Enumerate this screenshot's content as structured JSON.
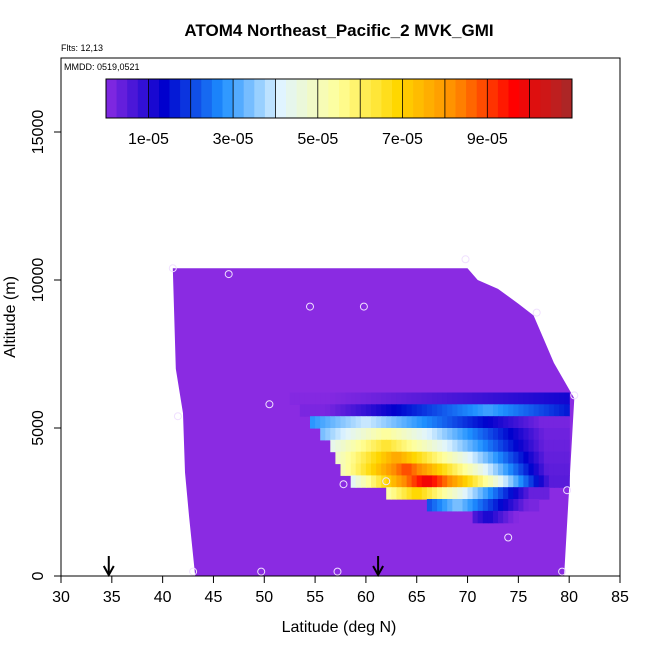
{
  "chart_data": {
    "type": "heatmap",
    "title": "ATOM4 Northeast_Pacific_2 MVK_GMI",
    "flights_note": "Flts: 12,13",
    "date_note": "MMDD: 0519,0521",
    "xlabel": "Latitude (deg N)",
    "ylabel": "Altitude (m)",
    "xlim": [
      30,
      85
    ],
    "ylim": [
      0,
      17500
    ],
    "x_ticks": [
      "30",
      "35",
      "40",
      "45",
      "50",
      "55",
      "60",
      "65",
      "70",
      "75",
      "80",
      "85"
    ],
    "y_ticks": [
      "0",
      "5000",
      "10000",
      "15000"
    ],
    "colorbar": {
      "range": [
        0,
        0.00011
      ],
      "tick_labels": [
        "1e-05",
        "3e-05",
        "5e-05",
        "7e-05",
        "9e-05"
      ],
      "tick_values": [
        1e-05,
        3e-05,
        5e-05,
        7e-05,
        9e-05
      ],
      "colors": [
        "#8a2be2",
        "#0000cd",
        "#1e90ff",
        "#e0f4ff",
        "#ffff99",
        "#ffd700",
        "#ff8c00",
        "#ff0000",
        "#a52a2a"
      ]
    },
    "background_value": 0.0,
    "domain_outline": [
      [
        41,
        10400
      ],
      [
        70,
        10400
      ],
      [
        71,
        10000
      ],
      [
        73,
        9700
      ],
      [
        75,
        9200
      ],
      [
        76.5,
        8800
      ],
      [
        77.5,
        8000
      ],
      [
        78.5,
        7200
      ],
      [
        79.5,
        6600
      ],
      [
        80.5,
        6000
      ],
      [
        80,
        3000
      ],
      [
        79.5,
        0
      ],
      [
        43.2,
        0
      ],
      [
        42.6,
        2000
      ],
      [
        42.2,
        3500
      ],
      [
        42,
        5500
      ],
      [
        41.3,
        7000
      ],
      [
        41,
        10400
      ]
    ],
    "plume_rows": [
      {
        "alt": 5800,
        "lat_start": 52.5,
        "lat_end": 80,
        "peak_lat": 80,
        "peak": 1.2e-05
      },
      {
        "alt": 5400,
        "lat_start": 53.5,
        "lat_end": 80,
        "peak_lat": 72,
        "peak": 3e-05
      },
      {
        "alt": 5000,
        "lat_start": 54.5,
        "lat_end": 80,
        "peak_lat": 60,
        "peak": 4e-05
      },
      {
        "alt": 4600,
        "lat_start": 55.5,
        "lat_end": 80,
        "peak_lat": 62,
        "peak": 5.5e-05
      },
      {
        "alt": 4200,
        "lat_start": 56.5,
        "lat_end": 80,
        "peak_lat": 62,
        "peak": 6.5e-05
      },
      {
        "alt": 3800,
        "lat_start": 57,
        "lat_end": 80,
        "peak_lat": 63,
        "peak": 7.8e-05
      },
      {
        "alt": 3400,
        "lat_start": 57.5,
        "lat_end": 80,
        "peak_lat": 64,
        "peak": 9e-05
      },
      {
        "alt": 3000,
        "lat_start": 58.5,
        "lat_end": 80,
        "peak_lat": 66,
        "peak": 0.0001
      },
      {
        "alt": 2600,
        "lat_start": 62,
        "lat_end": 78,
        "peak_lat": 65,
        "peak": 7e-05
      },
      {
        "alt": 2200,
        "lat_start": 66,
        "lat_end": 77,
        "peak_lat": 69,
        "peak": 3.5e-05
      },
      {
        "alt": 1800,
        "lat_start": 70.5,
        "lat_end": 75,
        "peak_lat": 72,
        "peak": 1.2e-05
      }
    ],
    "flight_points": [
      [
        41,
        10400
      ],
      [
        46.5,
        10200
      ],
      [
        54.5,
        9100
      ],
      [
        59.8,
        9100
      ],
      [
        69.8,
        10700
      ],
      [
        76.8,
        8900
      ],
      [
        80.5,
        6100
      ],
      [
        50.5,
        5800
      ],
      [
        41.5,
        5400
      ],
      [
        57.8,
        3100
      ],
      [
        62,
        3200
      ],
      [
        79.8,
        2900
      ],
      [
        74,
        1300
      ],
      [
        43,
        150
      ],
      [
        49.7,
        150
      ],
      [
        57.2,
        150
      ],
      [
        79.3,
        150
      ]
    ],
    "arrow_markers": [
      34.7,
      61.2
    ]
  }
}
